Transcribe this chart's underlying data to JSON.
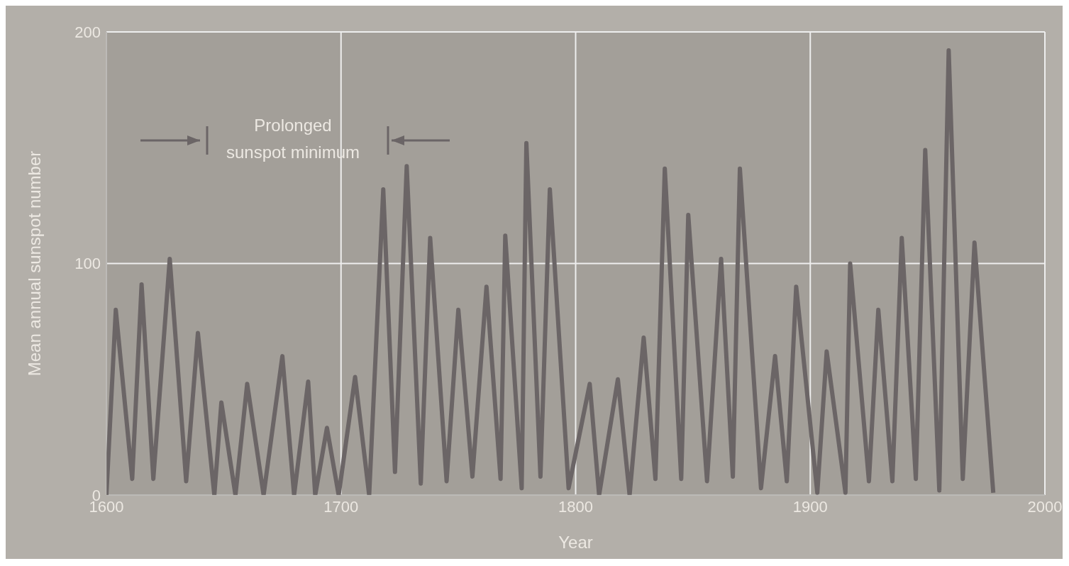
{
  "chart_data": {
    "type": "line",
    "xlabel": "Year",
    "ylabel": "Mean annual sunspot number",
    "x": [
      1600,
      1604,
      1611,
      1615,
      1620,
      1627,
      1634,
      1639,
      1646,
      1649,
      1655,
      1660,
      1667,
      1675,
      1680,
      1686,
      1689,
      1694,
      1699,
      1706,
      1712,
      1718,
      1723,
      1728,
      1734,
      1738,
      1745,
      1750,
      1756,
      1762,
      1768,
      1770,
      1777,
      1779,
      1785,
      1789,
      1797,
      1806,
      1810,
      1818,
      1823,
      1829,
      1834,
      1838,
      1845,
      1848,
      1856,
      1862,
      1867,
      1870,
      1879,
      1885,
      1890,
      1894,
      1903,
      1907,
      1915,
      1917,
      1925,
      1929,
      1935,
      1939,
      1945,
      1949,
      1955,
      1959,
      1965,
      1970,
      1978
    ],
    "series": [
      {
        "color": "#6b6566",
        "values": [
          0,
          80,
          7,
          91,
          7,
          102,
          6,
          70,
          0,
          40,
          0,
          48,
          0,
          60,
          0,
          49,
          0,
          29,
          0,
          51,
          0,
          132,
          10,
          142,
          5,
          111,
          6,
          80,
          8,
          90,
          7,
          112,
          3,
          152,
          8,
          132,
          3,
          48,
          0,
          50,
          0,
          68,
          7,
          141,
          7,
          121,
          6,
          102,
          8,
          141,
          3,
          60,
          6,
          90,
          1,
          62,
          1,
          100,
          6,
          80,
          6,
          111,
          7,
          149,
          2,
          192,
          7,
          109,
          1
        ]
      }
    ],
    "xlim": [
      1600,
      2000
    ],
    "xticks": [
      1600,
      1700,
      1800,
      1900,
      2000
    ],
    "ylim": [
      0,
      200
    ],
    "yticks": [
      0,
      100,
      200
    ],
    "grid": true,
    "marker": "none",
    "line_style": "solid",
    "annotations": [
      "Prolonged sunspot minimum"
    ]
  }
}
